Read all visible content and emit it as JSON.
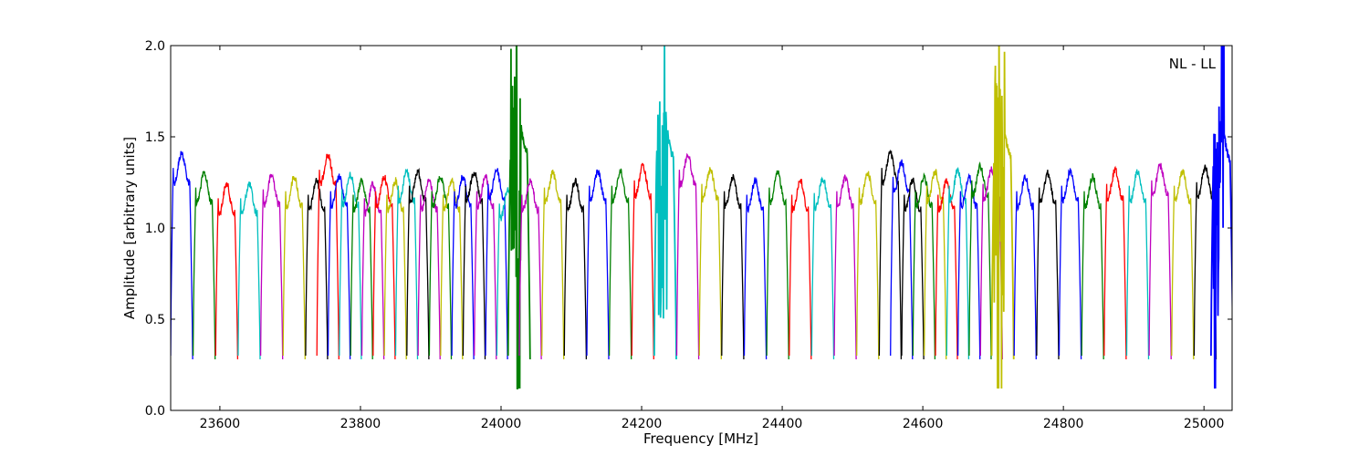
{
  "chart_data": {
    "type": "line",
    "title": "",
    "xlabel": "Frequency [MHz]",
    "ylabel": "Amplitude [arbitrary units]",
    "annotation": "NL - LL",
    "xlim": [
      23530,
      25040
    ],
    "ylim": [
      0.0,
      2.0
    ],
    "x_ticks": [
      23600,
      23800,
      24000,
      24200,
      24400,
      24600,
      24800,
      25000
    ],
    "y_ticks": [
      "0.0",
      "0.5",
      "1.0",
      "1.5",
      "2.0"
    ],
    "grid": false,
    "legend": "none",
    "colors": [
      "#0000ff",
      "#008000",
      "#ff0000",
      "#00bfbf",
      "#bf00bf",
      "#bfbf00",
      "#000000"
    ],
    "channel_width_mhz": 31.25,
    "channels": [
      {
        "start": 23530,
        "peak": 1.35,
        "color": "#0000ff"
      },
      {
        "start": 23562,
        "peak": 1.24,
        "color": "#008000"
      },
      {
        "start": 23594,
        "peak": 1.18,
        "color": "#ff0000"
      },
      {
        "start": 23626,
        "peak": 1.18,
        "color": "#00bfbf"
      },
      {
        "start": 23658,
        "peak": 1.23,
        "color": "#bf00bf"
      },
      {
        "start": 23690,
        "peak": 1.22,
        "color": "#bfbf00"
      },
      {
        "start": 23722,
        "peak": 1.2,
        "color": "#000000"
      },
      {
        "start": 23738,
        "peak": 1.34,
        "color": "#ff0000"
      },
      {
        "start": 23754,
        "peak": 1.22,
        "color": "#0000ff"
      },
      {
        "start": 23770,
        "peak": 1.23,
        "color": "#00bfbf"
      },
      {
        "start": 23786,
        "peak": 1.2,
        "color": "#008000"
      },
      {
        "start": 23802,
        "peak": 1.18,
        "color": "#bf00bf"
      },
      {
        "start": 23818,
        "peak": 1.22,
        "color": "#ff0000"
      },
      {
        "start": 23834,
        "peak": 1.2,
        "color": "#bfbf00"
      },
      {
        "start": 23850,
        "peak": 1.25,
        "color": "#00bfbf"
      },
      {
        "start": 23866,
        "peak": 1.25,
        "color": "#000000"
      },
      {
        "start": 23882,
        "peak": 1.2,
        "color": "#bf00bf"
      },
      {
        "start": 23898,
        "peak": 1.22,
        "color": "#008000"
      },
      {
        "start": 23914,
        "peak": 1.2,
        "color": "#bfbf00"
      },
      {
        "start": 23930,
        "peak": 1.22,
        "color": "#0000ff"
      },
      {
        "start": 23946,
        "peak": 1.25,
        "color": "#000000"
      },
      {
        "start": 23962,
        "peak": 1.22,
        "color": "#bf00bf"
      },
      {
        "start": 23978,
        "peak": 1.26,
        "color": "#0000ff"
      },
      {
        "start": 23994,
        "peak": 1.15,
        "color": "#00bfbf"
      },
      {
        "start": 24010,
        "peak": 1.52,
        "color": "#008000"
      },
      {
        "start": 24026,
        "peak": 1.2,
        "color": "#bf00bf"
      },
      {
        "start": 24058,
        "peak": 1.24,
        "color": "#bfbf00"
      },
      {
        "start": 24090,
        "peak": 1.2,
        "color": "#000000"
      },
      {
        "start": 24122,
        "peak": 1.25,
        "color": "#0000ff"
      },
      {
        "start": 24154,
        "peak": 1.25,
        "color": "#008000"
      },
      {
        "start": 24186,
        "peak": 1.28,
        "color": "#ff0000"
      },
      {
        "start": 24218,
        "peak": 1.5,
        "color": "#00bfbf"
      },
      {
        "start": 24250,
        "peak": 1.34,
        "color": "#bf00bf"
      },
      {
        "start": 24282,
        "peak": 1.26,
        "color": "#bfbf00"
      },
      {
        "start": 24314,
        "peak": 1.22,
        "color": "#000000"
      },
      {
        "start": 24346,
        "peak": 1.2,
        "color": "#0000ff"
      },
      {
        "start": 24378,
        "peak": 1.24,
        "color": "#008000"
      },
      {
        "start": 24410,
        "peak": 1.2,
        "color": "#ff0000"
      },
      {
        "start": 24442,
        "peak": 1.21,
        "color": "#00bfbf"
      },
      {
        "start": 24474,
        "peak": 1.22,
        "color": "#bf00bf"
      },
      {
        "start": 24506,
        "peak": 1.24,
        "color": "#bfbf00"
      },
      {
        "start": 24538,
        "peak": 1.35,
        "color": "#000000"
      },
      {
        "start": 24554,
        "peak": 1.3,
        "color": "#0000ff"
      },
      {
        "start": 24570,
        "peak": 1.2,
        "color": "#000000"
      },
      {
        "start": 24586,
        "peak": 1.22,
        "color": "#008000"
      },
      {
        "start": 24602,
        "peak": 1.25,
        "color": "#bfbf00"
      },
      {
        "start": 24618,
        "peak": 1.2,
        "color": "#ff0000"
      },
      {
        "start": 24634,
        "peak": 1.25,
        "color": "#00bfbf"
      },
      {
        "start": 24650,
        "peak": 1.22,
        "color": "#0000ff"
      },
      {
        "start": 24666,
        "peak": 1.28,
        "color": "#008000"
      },
      {
        "start": 24682,
        "peak": 1.26,
        "color": "#bf00bf"
      },
      {
        "start": 24698,
        "peak": 1.5,
        "color": "#bfbf00"
      },
      {
        "start": 24730,
        "peak": 1.22,
        "color": "#0000ff"
      },
      {
        "start": 24762,
        "peak": 1.24,
        "color": "#000000"
      },
      {
        "start": 24794,
        "peak": 1.25,
        "color": "#0000ff"
      },
      {
        "start": 24826,
        "peak": 1.22,
        "color": "#008000"
      },
      {
        "start": 24858,
        "peak": 1.26,
        "color": "#ff0000"
      },
      {
        "start": 24890,
        "peak": 1.25,
        "color": "#00bfbf"
      },
      {
        "start": 24922,
        "peak": 1.28,
        "color": "#bf00bf"
      },
      {
        "start": 24954,
        "peak": 1.25,
        "color": "#bfbf00"
      },
      {
        "start": 24986,
        "peak": 1.27,
        "color": "#000000"
      },
      {
        "start": 25010,
        "peak": 1.48,
        "color": "#0000ff"
      }
    ]
  }
}
